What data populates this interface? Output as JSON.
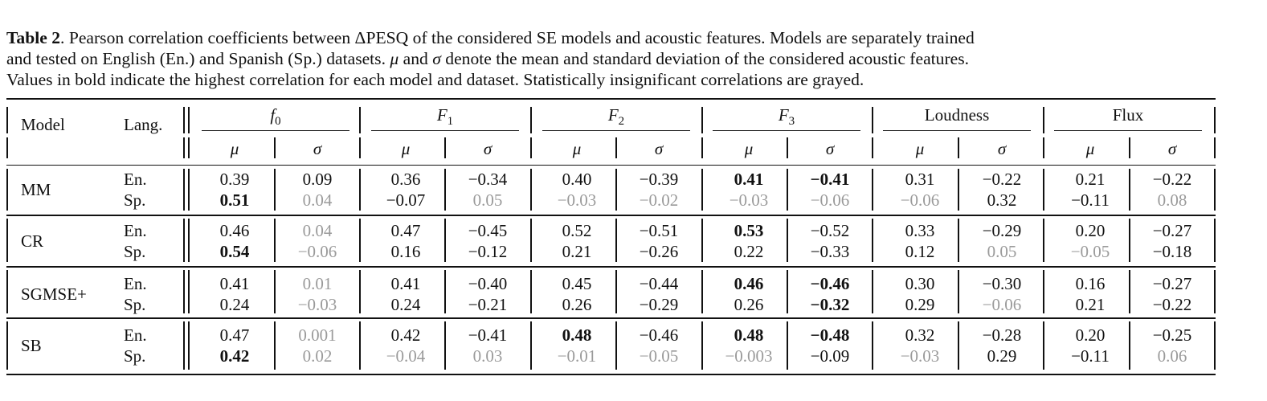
{
  "caption": {
    "label": "Table 2",
    "line1": ". Pearson correlation coefficients between ΔPESQ of the considered SE models and acoustic features. Models are separately trained",
    "line2a": "and tested on English (En.) and Spanish (Sp.) datasets. ",
    "mu": "μ",
    "line2b": " and ",
    "sigma": "σ",
    "line2c": " denote the mean and standard deviation of the considered acoustic features.",
    "line3": "Values in bold indicate the highest correlation for each model and dataset. Statistically insignificant correlations are grayed."
  },
  "header": {
    "model": "Model",
    "lang": "Lang.",
    "features": [
      "f0",
      "F1",
      "F2",
      "F3",
      "Loudness",
      "Flux"
    ],
    "stats": [
      "μ",
      "σ"
    ]
  },
  "rows": [
    {
      "model": "MM",
      "langs": [
        "En.",
        "Sp."
      ],
      "values": [
        [
          {
            "v": "0.39",
            "s": "n"
          },
          {
            "v": "0.09",
            "s": "n"
          },
          {
            "v": "0.36",
            "s": "n"
          },
          {
            "v": "−0.34",
            "s": "n"
          },
          {
            "v": "0.40",
            "s": "n"
          },
          {
            "v": "−0.39",
            "s": "n"
          },
          {
            "v": "0.41",
            "s": "b"
          },
          {
            "v": "−0.41",
            "s": "b"
          },
          {
            "v": "0.31",
            "s": "n"
          },
          {
            "v": "−0.22",
            "s": "n"
          },
          {
            "v": "0.21",
            "s": "n"
          },
          {
            "v": "−0.22",
            "s": "n"
          }
        ],
        [
          {
            "v": "0.51",
            "s": "b"
          },
          {
            "v": "0.04",
            "s": "g"
          },
          {
            "v": "−0.07",
            "s": "n"
          },
          {
            "v": "0.05",
            "s": "g"
          },
          {
            "v": "−0.03",
            "s": "g"
          },
          {
            "v": "−0.02",
            "s": "g"
          },
          {
            "v": "−0.03",
            "s": "g"
          },
          {
            "v": "−0.06",
            "s": "g"
          },
          {
            "v": "−0.06",
            "s": "g"
          },
          {
            "v": "0.32",
            "s": "n"
          },
          {
            "v": "−0.11",
            "s": "n"
          },
          {
            "v": "0.08",
            "s": "g"
          }
        ]
      ]
    },
    {
      "model": "CR",
      "langs": [
        "En.",
        "Sp."
      ],
      "values": [
        [
          {
            "v": "0.46",
            "s": "n"
          },
          {
            "v": "0.04",
            "s": "g"
          },
          {
            "v": "0.47",
            "s": "n"
          },
          {
            "v": "−0.45",
            "s": "n"
          },
          {
            "v": "0.52",
            "s": "n"
          },
          {
            "v": "−0.51",
            "s": "n"
          },
          {
            "v": "0.53",
            "s": "b"
          },
          {
            "v": "−0.52",
            "s": "n"
          },
          {
            "v": "0.33",
            "s": "n"
          },
          {
            "v": "−0.29",
            "s": "n"
          },
          {
            "v": "0.20",
            "s": "n"
          },
          {
            "v": "−0.27",
            "s": "n"
          }
        ],
        [
          {
            "v": "0.54",
            "s": "b"
          },
          {
            "v": "−0.06",
            "s": "g"
          },
          {
            "v": "0.16",
            "s": "n"
          },
          {
            "v": "−0.12",
            "s": "n"
          },
          {
            "v": "0.21",
            "s": "n"
          },
          {
            "v": "−0.26",
            "s": "n"
          },
          {
            "v": "0.22",
            "s": "n"
          },
          {
            "v": "−0.33",
            "s": "n"
          },
          {
            "v": "0.12",
            "s": "n"
          },
          {
            "v": "0.05",
            "s": "g"
          },
          {
            "v": "−0.05",
            "s": "g"
          },
          {
            "v": "−0.18",
            "s": "n"
          }
        ]
      ]
    },
    {
      "model": "SGMSE+",
      "langs": [
        "En.",
        "Sp."
      ],
      "values": [
        [
          {
            "v": "0.41",
            "s": "n"
          },
          {
            "v": "0.01",
            "s": "g"
          },
          {
            "v": "0.41",
            "s": "n"
          },
          {
            "v": "−0.40",
            "s": "n"
          },
          {
            "v": "0.45",
            "s": "n"
          },
          {
            "v": "−0.44",
            "s": "n"
          },
          {
            "v": "0.46",
            "s": "b"
          },
          {
            "v": "−0.46",
            "s": "b"
          },
          {
            "v": "0.30",
            "s": "n"
          },
          {
            "v": "−0.30",
            "s": "n"
          },
          {
            "v": "0.16",
            "s": "n"
          },
          {
            "v": "−0.27",
            "s": "n"
          }
        ],
        [
          {
            "v": "0.24",
            "s": "n"
          },
          {
            "v": "−0.03",
            "s": "g"
          },
          {
            "v": "0.24",
            "s": "n"
          },
          {
            "v": "−0.21",
            "s": "n"
          },
          {
            "v": "0.26",
            "s": "n"
          },
          {
            "v": "−0.29",
            "s": "n"
          },
          {
            "v": "0.26",
            "s": "n"
          },
          {
            "v": "−0.32",
            "s": "b"
          },
          {
            "v": "0.29",
            "s": "n"
          },
          {
            "v": "−0.06",
            "s": "g"
          },
          {
            "v": "0.21",
            "s": "n"
          },
          {
            "v": "−0.22",
            "s": "n"
          }
        ]
      ]
    },
    {
      "model": "SB",
      "langs": [
        "En.",
        "Sp."
      ],
      "values": [
        [
          {
            "v": "0.47",
            "s": "n"
          },
          {
            "v": "0.001",
            "s": "g"
          },
          {
            "v": "0.42",
            "s": "n"
          },
          {
            "v": "−0.41",
            "s": "n"
          },
          {
            "v": "0.48",
            "s": "b"
          },
          {
            "v": "−0.46",
            "s": "n"
          },
          {
            "v": "0.48",
            "s": "b"
          },
          {
            "v": "−0.48",
            "s": "b"
          },
          {
            "v": "0.32",
            "s": "n"
          },
          {
            "v": "−0.28",
            "s": "n"
          },
          {
            "v": "0.20",
            "s": "n"
          },
          {
            "v": "−0.25",
            "s": "n"
          }
        ],
        [
          {
            "v": "0.42",
            "s": "b"
          },
          {
            "v": "0.02",
            "s": "g"
          },
          {
            "v": "−0.04",
            "s": "g"
          },
          {
            "v": "0.03",
            "s": "g"
          },
          {
            "v": "−0.01",
            "s": "g"
          },
          {
            "v": "−0.05",
            "s": "g"
          },
          {
            "v": "−0.003",
            "s": "g"
          },
          {
            "v": "−0.09",
            "s": "n"
          },
          {
            "v": "−0.03",
            "s": "g"
          },
          {
            "v": "0.29",
            "s": "n"
          },
          {
            "v": "−0.11",
            "s": "n"
          },
          {
            "v": "0.06",
            "s": "g"
          }
        ]
      ]
    }
  ]
}
